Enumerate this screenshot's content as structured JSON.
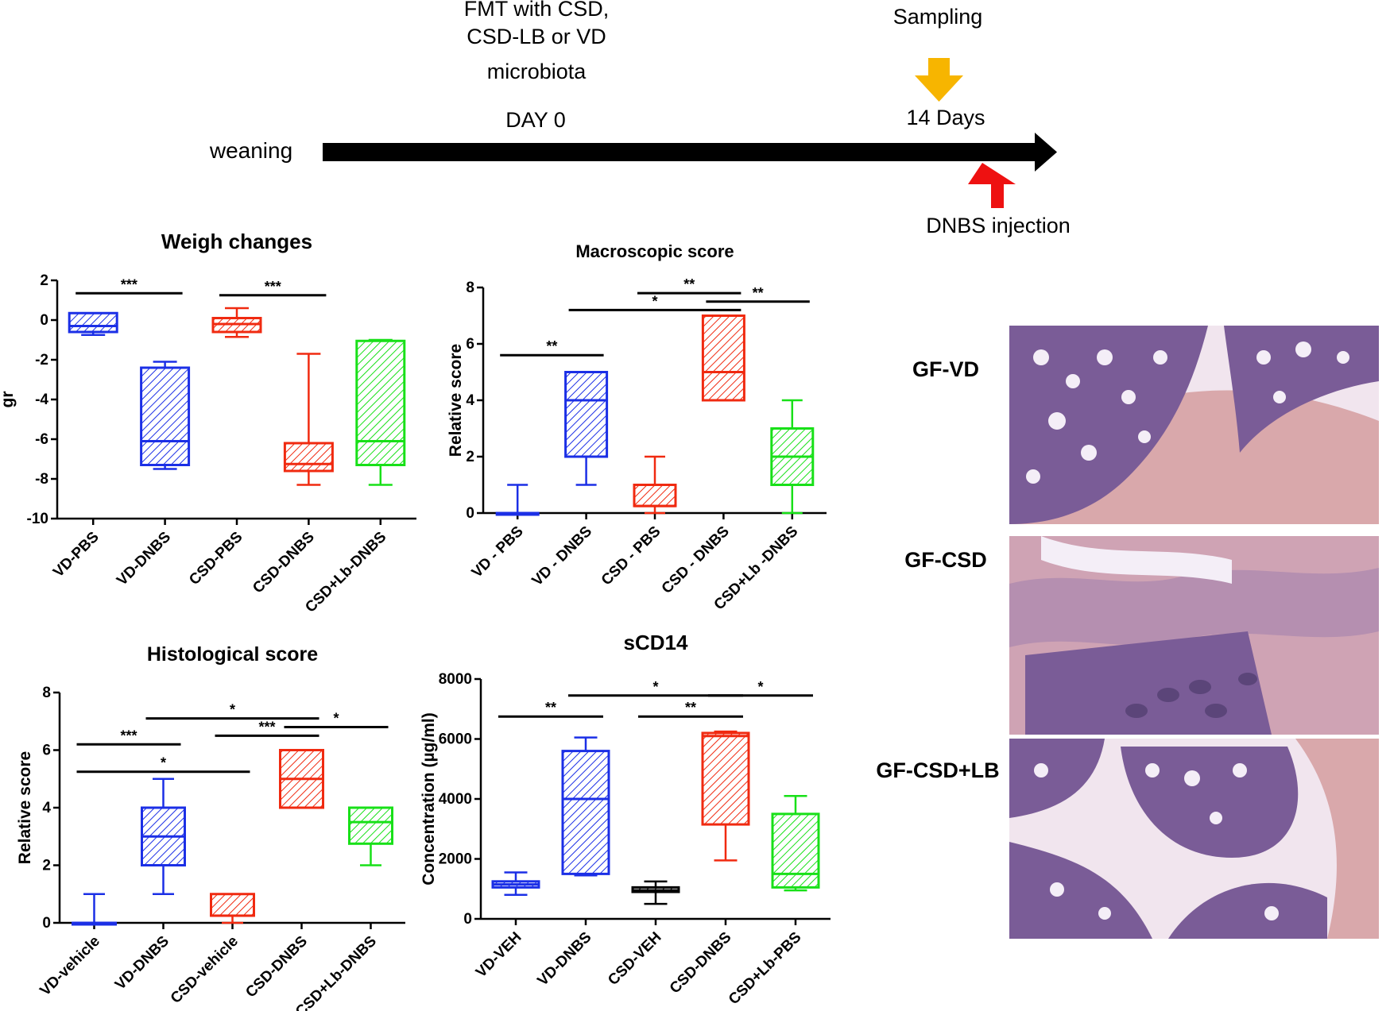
{
  "timeline": {
    "fmt_label": [
      "FMT with CSD,",
      "CSD-LB or VD",
      "microbiota"
    ],
    "day0": "DAY 0",
    "weaning": "weaning",
    "sampling": "Sampling",
    "days14": "14 Days",
    "dnbs": "DNBS injection",
    "colors": {
      "sampling_arrow": "#f7b500",
      "dnbs_arrow": "#ee1111",
      "main_arrow": "#000000"
    }
  },
  "micrographs": {
    "labels": [
      "GF-VD",
      "GF-CSD",
      "GF-CSD+LB"
    ],
    "colors": {
      "mucosa": "#7a5c97",
      "muscle": "#d9a8ab",
      "background": "#f1e5ee"
    }
  },
  "chart_data": [
    {
      "id": "weigh",
      "type": "box",
      "title": "Weigh changes",
      "ylabel": "gr",
      "ylim": [
        -10,
        2
      ],
      "yticks": [
        2,
        0,
        -2,
        -4,
        -6,
        -8,
        -10
      ],
      "categories": [
        "VD-PBS",
        "VD-DNBS",
        "CSD-PBS",
        "CSD-DNBS",
        "CSD+Lb-DNBS"
      ],
      "colors": [
        "#1b2fe6",
        "#1b2fe6",
        "#f02a10",
        "#f02a10",
        "#18e018"
      ],
      "boxes": [
        {
          "min": -0.75,
          "q1": -0.6,
          "median": -0.3,
          "q3": 0.35,
          "max": 0.35
        },
        {
          "min": -7.5,
          "q1": -7.3,
          "median": -6.1,
          "q3": -2.4,
          "max": -2.1
        },
        {
          "min": -0.85,
          "q1": -0.6,
          "median": -0.2,
          "q3": 0.1,
          "max": 0.6
        },
        {
          "min": -8.3,
          "q1": -7.6,
          "median": -7.25,
          "q3": -6.2,
          "max": -1.7
        },
        {
          "min": -8.3,
          "q1": -7.3,
          "median": -6.1,
          "q3": -1.05,
          "max": -1.0
        }
      ],
      "significance": [
        {
          "from": 0,
          "to": 1,
          "label": "***",
          "y": 1.35
        },
        {
          "from": 2,
          "to": 3,
          "label": "***",
          "y": 1.25
        }
      ]
    },
    {
      "id": "macro",
      "type": "box",
      "title": "Macroscopic score",
      "ylabel": "Relative score",
      "ylim": [
        0,
        8
      ],
      "yticks": [
        0,
        2,
        4,
        6,
        8
      ],
      "categories": [
        "VD - PBS",
        "VD - DNBS",
        "CSD - PBS",
        "CSD - DNBS",
        "CSD+Lb -DNBS"
      ],
      "colors": [
        "#1b2fe6",
        "#1b2fe6",
        "#f02a10",
        "#f02a10",
        "#18e018"
      ],
      "boxes": [
        {
          "min": 0,
          "q1": 0,
          "median": 0,
          "q3": 0,
          "max": 1
        },
        {
          "min": 1,
          "q1": 2,
          "median": 4,
          "q3": 5,
          "max": 5
        },
        {
          "min": 0,
          "q1": 0.25,
          "median": 0.25,
          "q3": 1,
          "max": 2
        },
        {
          "min": 4,
          "q1": 4,
          "median": 5,
          "q3": 7,
          "max": 7
        },
        {
          "min": 0,
          "q1": 1,
          "median": 2,
          "q3": 3,
          "max": 4
        }
      ],
      "significance": [
        {
          "from": 0,
          "to": 1,
          "label": "**",
          "y": 5.6
        },
        {
          "from": 1,
          "to": 3,
          "label": "*",
          "y": 7.2
        },
        {
          "from": 2,
          "to": 3,
          "label": "**",
          "y": 7.8
        },
        {
          "from": 3,
          "to": 4,
          "label": "**",
          "y": 7.5
        }
      ]
    },
    {
      "id": "histo",
      "type": "box",
      "title": "Histological score",
      "ylabel": "Relative score",
      "ylim": [
        0,
        8
      ],
      "yticks": [
        0,
        2,
        4,
        6,
        8
      ],
      "categories": [
        "VD-vehicle",
        "VD-DNBS",
        "CSD-vehicle",
        "CSD-DNBS",
        "CSD+Lb-DNBS"
      ],
      "colors": [
        "#1b2fe6",
        "#1b2fe6",
        "#f02a10",
        "#f02a10",
        "#18e018"
      ],
      "boxes": [
        {
          "min": 0,
          "q1": 0,
          "median": 0,
          "q3": 0,
          "max": 1
        },
        {
          "min": 1,
          "q1": 2,
          "median": 3,
          "q3": 4,
          "max": 5
        },
        {
          "min": 0,
          "q1": 0.25,
          "median": 0.25,
          "q3": 1,
          "max": 1
        },
        {
          "min": 4,
          "q1": 4,
          "median": 5,
          "q3": 6,
          "max": 6
        },
        {
          "min": 2,
          "q1": 2.75,
          "median": 3.5,
          "q3": 4,
          "max": 4
        }
      ],
      "significance": [
        {
          "from": 0,
          "to": 1,
          "label": "***",
          "y": 6.2
        },
        {
          "from": 0,
          "to": 2,
          "label": "*",
          "y": 5.25
        },
        {
          "from": 1,
          "to": 3,
          "label": "*",
          "y": 7.1
        },
        {
          "from": 2,
          "to": 3,
          "label": "***",
          "y": 6.5
        },
        {
          "from": 3,
          "to": 4,
          "label": "*",
          "y": 6.8
        }
      ]
    },
    {
      "id": "scd14",
      "type": "box",
      "title": "sCD14",
      "ylabel": "Concentration (µg/ml)",
      "ylim": [
        0,
        8000
      ],
      "yticks": [
        0,
        2000,
        4000,
        6000,
        8000
      ],
      "categories": [
        "VD-VEH",
        "VD-DNBS",
        "CSD-VEH",
        "CSD-DNBS",
        "CSD+Lb-PBS"
      ],
      "colors": [
        "#1b2fe6",
        "#1b2fe6",
        "#000000",
        "#f02a10",
        "#18e018"
      ],
      "boxes": [
        {
          "min": 800,
          "q1": 1050,
          "median": 1150,
          "q3": 1250,
          "max": 1550
        },
        {
          "min": 1450,
          "q1": 1500,
          "median": 4000,
          "q3": 5600,
          "max": 6050
        },
        {
          "min": 500,
          "q1": 900,
          "median": 950,
          "q3": 1050,
          "max": 1250
        },
        {
          "min": 1950,
          "q1": 3150,
          "median": 6100,
          "q3": 6200,
          "max": 6250
        },
        {
          "min": 950,
          "q1": 1050,
          "median": 1500,
          "q3": 3500,
          "max": 4100
        }
      ],
      "significance": [
        {
          "from": 0,
          "to": 1,
          "label": "**",
          "y": 6750
        },
        {
          "from": 1,
          "to": 3,
          "label": "*",
          "y": 7450
        },
        {
          "from": 2,
          "to": 3,
          "label": "**",
          "y": 6750
        },
        {
          "from": 3,
          "to": 4,
          "label": "*",
          "y": 7450
        }
      ]
    }
  ]
}
